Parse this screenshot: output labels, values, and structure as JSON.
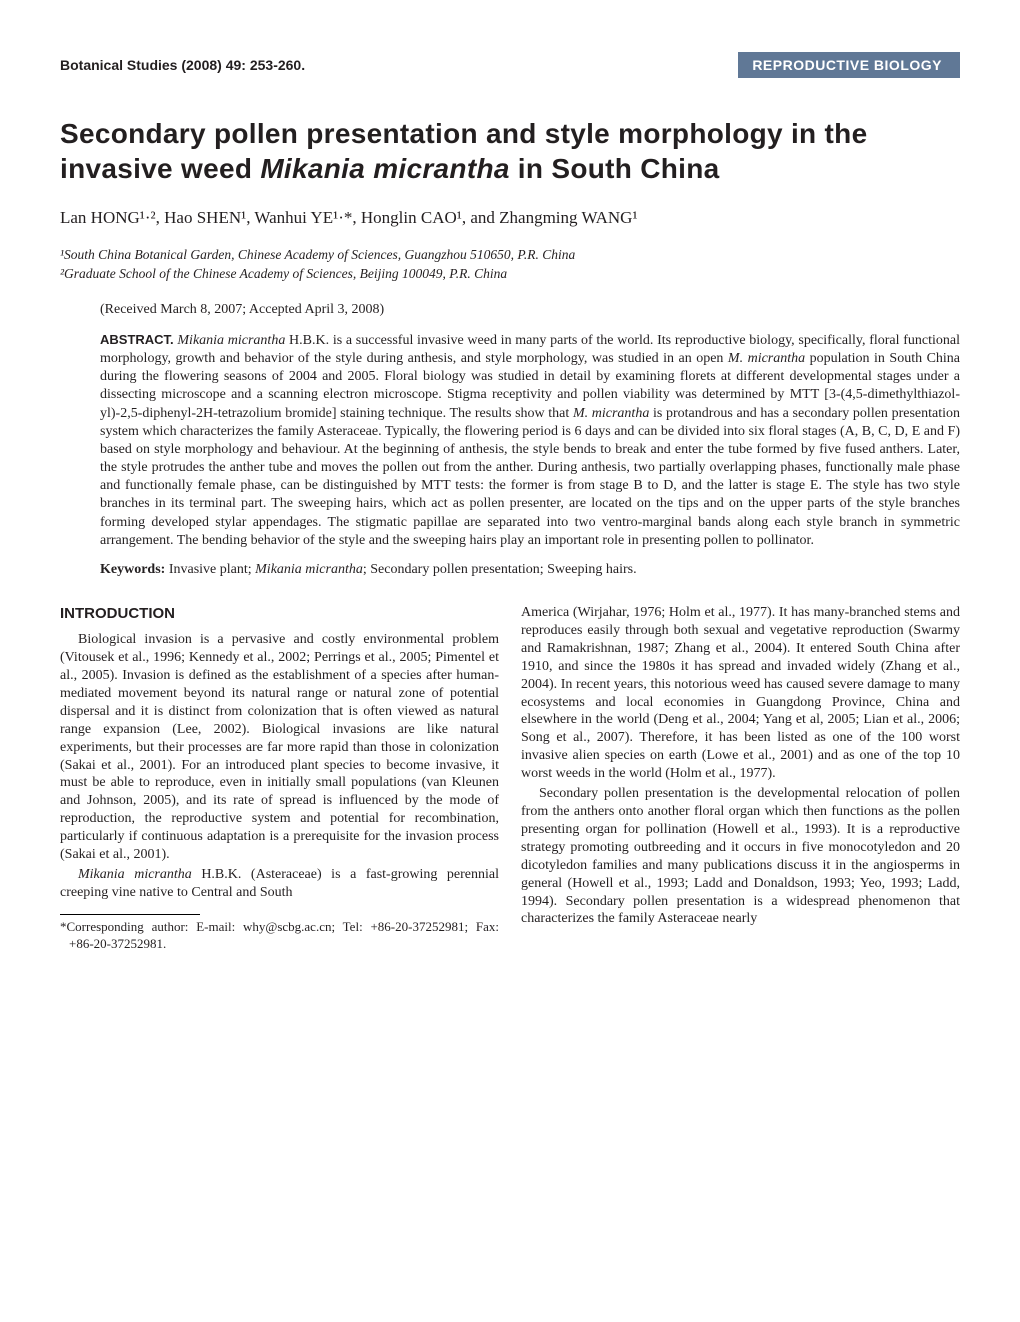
{
  "header": {
    "journal": "Botanical Studies (2008) 49: 253-260.",
    "category": "REPRODUCTIVE BIOLOGY"
  },
  "title": {
    "prefix": "Secondary pollen presentation and style morphology in the invasive weed ",
    "species": "Mikania micrantha",
    "suffix": " in South China"
  },
  "authors": "Lan HONG¹·², Hao SHEN¹, Wanhui YE¹·*, Honglin CAO¹, and Zhangming WANG¹",
  "affiliations": {
    "a1": "¹South China Botanical Garden, Chinese Academy of Sciences, Guangzhou 510650, P.R. China",
    "a2": "²Graduate School of the Chinese Academy of Sciences, Beijing 100049, P.R. China"
  },
  "dates": "(Received March 8, 2007; Accepted April 3, 2008)",
  "abstract": {
    "label": "ABSTRACT.",
    "text_p1": "Mikania micrantha",
    "text_p2": " H.B.K. is a successful invasive weed in many parts of the world. Its reproductive biology, specifically, floral functional morphology, growth and behavior of the style during anthesis, and style morphology, was studied in an open ",
    "text_p3": "M. micrantha",
    "text_p4": " population in South China during the flowering seasons of 2004 and 2005. Floral biology was studied in detail by examining florets at different developmental stages under a dissecting microscope and a scanning electron microscope. Stigma receptivity and pollen viability was determined by MTT [3-(4,5-dimethylthiazol-yl)-2,5-diphenyl-2H-tetrazolium bromide] staining technique. The results show that ",
    "text_p5": "M. micrantha",
    "text_p6": " is protandrous and has a secondary pollen presentation system which characterizes the family Asteraceae. Typically, the flowering period is 6 days and can be divided into six floral stages (A, B, C, D, E and F) based on style morphology and behaviour. At the beginning of anthesis, the style bends to break and enter the tube formed by five fused anthers. Later, the style protrudes the anther tube and moves the pollen out from the anther. During anthesis, two partially overlapping phases, functionally male phase and functionally female phase, can be distinguished by MTT tests: the former is from stage B to D, and the latter is stage E. The style has two style branches in its terminal part. The sweeping hairs, which act as pollen presenter, are located on the tips and on the upper parts of the style branches forming developed stylar appendages. The stigmatic papillae are separated into two ventro-marginal bands along each style branch in symmetric arrangement. The bending behavior of the style and the sweeping hairs play an important role in presenting pollen to pollinator."
  },
  "keywords": {
    "label": "Keywords:",
    "text_p1": " Invasive plant; ",
    "text_p2": "Mikania micrantha",
    "text_p3": "; Secondary pollen presentation; Sweeping hairs."
  },
  "section_heading": "INTRODUCTION",
  "body": {
    "para1": "Biological invasion is a pervasive and costly environmental problem (Vitousek et al., 1996; Kennedy et al., 2002; Perrings et al., 2005; Pimentel et al., 2005). Invasion is defined as the establishment of a species after human-mediated movement beyond its natural range or natural zone of potential dispersal and it is distinct from colonization that is often viewed as natural range expansion (Lee, 2002). Biological invasions are like natural experiments, but their processes are far more rapid than those in colonization (Sakai et al., 2001). For an introduced plant species to become invasive, it must be able to reproduce, even in initially small populations (van Kleunen and Johnson, 2005), and its rate of spread is influenced by the mode of reproduction, the reproductive system and potential for recombination, particularly if continuous adaptation is a prerequisite for the invasion process (Sakai et al., 2001).",
    "para2_p1": "Mikania micrantha",
    "para2_p2": " H.B.K. (Asteraceae) is a fast-growing perennial creeping vine native to Central and South ",
    "para2_p3": "America (Wirjahar, 1976; Holm et al., 1977). It has many-branched stems and reproduces easily through both sexual and vegetative reproduction (Swarmy and Ramakrishnan, 1987; Zhang et al., 2004). It entered South China after 1910, and since the 1980s it has spread and invaded widely (Zhang et al., 2004). In recent years, this notorious weed has caused severe damage to many ecosystems and local economies in Guangdong Province, China and elsewhere in the world (Deng et al., 2004; Yang et al, 2005; Lian et al., 2006; Song et al., 2007). Therefore, it has been listed as one of the 100 worst invasive alien species on earth (Lowe et al., 2001) and as one of the top 10 worst weeds in the world (Holm et al., 1977).",
    "para3": "Secondary pollen presentation is the developmental relocation of pollen from the anthers onto another floral organ which then functions as the pollen presenting organ for pollination (Howell et al., 1993). It is a reproductive strategy promoting outbreeding and it occurs in five monocotyledon and 20 dicotyledon families and many publications discuss it in the angiosperms in general (Howell et al., 1993; Ladd and Donaldson, 1993; Yeo, 1993; Ladd, 1994). Secondary pollen presentation is a widespread phenomenon that characterizes the family Asteraceae nearly"
  },
  "footnote": "*Corresponding author: E-mail: why@scbg.ac.cn; Tel: +86-20-37252981; Fax: +86-20-37252981.",
  "colors": {
    "badge_bg": "#607896",
    "badge_text": "#ffffff",
    "text": "#231f20",
    "page_bg": "#ffffff"
  }
}
